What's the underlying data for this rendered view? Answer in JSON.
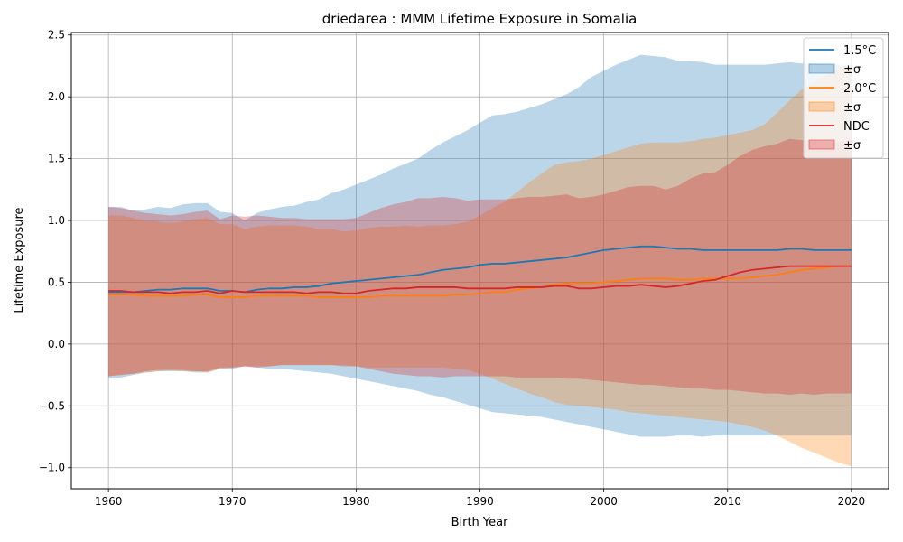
{
  "chart_data": {
    "type": "area",
    "title": "driedarea : MMM Lifetime Exposure in Somalia",
    "xlabel": "Birth Year",
    "ylabel": "Lifetime Exposure",
    "xlim": [
      1957,
      2023
    ],
    "ylim": [
      -1.17,
      2.52
    ],
    "xticks": [
      "1960",
      "1970",
      "1980",
      "1990",
      "2000",
      "2010",
      "2020"
    ],
    "yticks": [
      "−1.0",
      "−0.5",
      "0.0",
      "0.5",
      "1.0",
      "1.5",
      "2.0",
      "2.5"
    ],
    "grid": true,
    "legend_position": "top-right",
    "legend": [
      "1.5°C",
      "±σ",
      "2.0°C",
      "±σ",
      "NDC",
      "±σ"
    ],
    "x": [
      1960,
      1961,
      1962,
      1963,
      1964,
      1965,
      1966,
      1967,
      1968,
      1969,
      1970,
      1971,
      1972,
      1973,
      1974,
      1975,
      1976,
      1977,
      1978,
      1979,
      1980,
      1981,
      1982,
      1983,
      1984,
      1985,
      1986,
      1987,
      1988,
      1989,
      1990,
      1991,
      1992,
      1993,
      1994,
      1995,
      1996,
      1997,
      1998,
      1999,
      2000,
      2001,
      2002,
      2003,
      2004,
      2005,
      2006,
      2007,
      2008,
      2009,
      2010,
      2011,
      2012,
      2013,
      2014,
      2015,
      2016,
      2017,
      2018,
      2019,
      2020
    ],
    "series": [
      {
        "name": "1.5°C",
        "band_name": "±σ",
        "color": "#1f77b4",
        "values": [
          0.42,
          0.42,
          0.42,
          0.43,
          0.44,
          0.44,
          0.45,
          0.45,
          0.45,
          0.43,
          0.43,
          0.42,
          0.44,
          0.45,
          0.45,
          0.46,
          0.46,
          0.47,
          0.49,
          0.5,
          0.51,
          0.52,
          0.53,
          0.54,
          0.55,
          0.56,
          0.58,
          0.6,
          0.61,
          0.62,
          0.64,
          0.65,
          0.65,
          0.66,
          0.67,
          0.68,
          0.69,
          0.7,
          0.72,
          0.74,
          0.76,
          0.77,
          0.78,
          0.79,
          0.79,
          0.78,
          0.77,
          0.77,
          0.76,
          0.76,
          0.76,
          0.76,
          0.76,
          0.76,
          0.76,
          0.77,
          0.77,
          0.76,
          0.76,
          0.76,
          0.76
        ],
        "upper": [
          1.11,
          1.11,
          1.08,
          1.09,
          1.11,
          1.1,
          1.13,
          1.14,
          1.14,
          1.07,
          1.06,
          1.0,
          1.06,
          1.09,
          1.11,
          1.12,
          1.15,
          1.17,
          1.22,
          1.25,
          1.29,
          1.33,
          1.37,
          1.42,
          1.46,
          1.5,
          1.57,
          1.63,
          1.68,
          1.73,
          1.79,
          1.85,
          1.86,
          1.88,
          1.91,
          1.94,
          1.98,
          2.02,
          2.08,
          2.16,
          2.21,
          2.26,
          2.3,
          2.34,
          2.33,
          2.32,
          2.29,
          2.29,
          2.28,
          2.26,
          2.26,
          2.26,
          2.26,
          2.26,
          2.27,
          2.28,
          2.27,
          2.27,
          2.26,
          2.26,
          2.26
        ],
        "lower": [
          -0.28,
          -0.27,
          -0.25,
          -0.23,
          -0.22,
          -0.22,
          -0.22,
          -0.23,
          -0.23,
          -0.2,
          -0.2,
          -0.18,
          -0.19,
          -0.2,
          -0.2,
          -0.21,
          -0.22,
          -0.23,
          -0.24,
          -0.26,
          -0.28,
          -0.3,
          -0.32,
          -0.34,
          -0.36,
          -0.38,
          -0.41,
          -0.43,
          -0.46,
          -0.49,
          -0.52,
          -0.55,
          -0.56,
          -0.57,
          -0.58,
          -0.59,
          -0.61,
          -0.63,
          -0.65,
          -0.67,
          -0.69,
          -0.71,
          -0.73,
          -0.75,
          -0.75,
          -0.75,
          -0.74,
          -0.74,
          -0.75,
          -0.74,
          -0.74,
          -0.74,
          -0.74,
          -0.74,
          -0.74,
          -0.74,
          -0.74,
          -0.74,
          -0.74,
          -0.74,
          -0.74
        ]
      },
      {
        "name": "2.0°C",
        "band_name": "±σ",
        "color": "#ff7f0e",
        "values": [
          0.4,
          0.4,
          0.4,
          0.39,
          0.39,
          0.39,
          0.39,
          0.4,
          0.4,
          0.38,
          0.38,
          0.38,
          0.39,
          0.39,
          0.39,
          0.39,
          0.39,
          0.38,
          0.38,
          0.38,
          0.38,
          0.38,
          0.39,
          0.39,
          0.39,
          0.39,
          0.39,
          0.39,
          0.4,
          0.4,
          0.41,
          0.42,
          0.42,
          0.44,
          0.45,
          0.46,
          0.48,
          0.49,
          0.49,
          0.49,
          0.5,
          0.51,
          0.52,
          0.53,
          0.53,
          0.53,
          0.52,
          0.52,
          0.53,
          0.53,
          0.53,
          0.53,
          0.54,
          0.55,
          0.56,
          0.58,
          0.6,
          0.61,
          0.62,
          0.63,
          0.63
        ],
        "upper": [
          1.04,
          1.04,
          1.02,
          1.0,
          0.99,
          0.98,
          0.99,
          1.01,
          1.02,
          0.97,
          0.97,
          0.93,
          0.95,
          0.96,
          0.96,
          0.96,
          0.95,
          0.93,
          0.93,
          0.91,
          0.92,
          0.94,
          0.95,
          0.95,
          0.96,
          0.95,
          0.96,
          0.96,
          0.97,
          0.99,
          1.04,
          1.1,
          1.15,
          1.23,
          1.31,
          1.38,
          1.45,
          1.47,
          1.48,
          1.5,
          1.53,
          1.56,
          1.59,
          1.62,
          1.63,
          1.63,
          1.63,
          1.64,
          1.66,
          1.67,
          1.69,
          1.71,
          1.73,
          1.78,
          1.87,
          1.97,
          2.06,
          2.12,
          2.18,
          2.23,
          2.26
        ],
        "lower": [
          -0.26,
          -0.25,
          -0.24,
          -0.23,
          -0.22,
          -0.21,
          -0.22,
          -0.22,
          -0.23,
          -0.2,
          -0.19,
          -0.18,
          -0.18,
          -0.18,
          -0.17,
          -0.17,
          -0.17,
          -0.17,
          -0.17,
          -0.17,
          -0.18,
          -0.19,
          -0.19,
          -0.19,
          -0.19,
          -0.19,
          -0.19,
          -0.19,
          -0.2,
          -0.21,
          -0.24,
          -0.28,
          -0.32,
          -0.36,
          -0.4,
          -0.43,
          -0.47,
          -0.49,
          -0.5,
          -0.51,
          -0.52,
          -0.53,
          -0.55,
          -0.56,
          -0.57,
          -0.58,
          -0.59,
          -0.6,
          -0.61,
          -0.62,
          -0.63,
          -0.65,
          -0.67,
          -0.7,
          -0.74,
          -0.79,
          -0.84,
          -0.88,
          -0.92,
          -0.96,
          -0.99
        ]
      },
      {
        "name": "NDC",
        "band_name": "±σ",
        "color": "#d62728",
        "values": [
          0.43,
          0.43,
          0.42,
          0.42,
          0.42,
          0.41,
          0.42,
          0.42,
          0.43,
          0.41,
          0.43,
          0.42,
          0.42,
          0.42,
          0.42,
          0.42,
          0.41,
          0.42,
          0.42,
          0.41,
          0.41,
          0.43,
          0.44,
          0.45,
          0.45,
          0.46,
          0.46,
          0.46,
          0.46,
          0.45,
          0.45,
          0.45,
          0.45,
          0.46,
          0.46,
          0.46,
          0.47,
          0.47,
          0.45,
          0.45,
          0.46,
          0.47,
          0.47,
          0.48,
          0.47,
          0.46,
          0.47,
          0.49,
          0.51,
          0.52,
          0.55,
          0.58,
          0.6,
          0.61,
          0.62,
          0.63,
          0.63,
          0.63,
          0.63,
          0.63,
          0.63
        ],
        "upper": [
          1.11,
          1.1,
          1.08,
          1.06,
          1.05,
          1.04,
          1.05,
          1.07,
          1.08,
          1.01,
          1.04,
          1.03,
          1.04,
          1.03,
          1.02,
          1.02,
          1.01,
          1.01,
          1.01,
          1.01,
          1.02,
          1.06,
          1.1,
          1.13,
          1.15,
          1.18,
          1.18,
          1.19,
          1.18,
          1.16,
          1.17,
          1.17,
          1.17,
          1.18,
          1.19,
          1.19,
          1.2,
          1.21,
          1.18,
          1.19,
          1.21,
          1.24,
          1.27,
          1.28,
          1.28,
          1.25,
          1.28,
          1.34,
          1.38,
          1.39,
          1.45,
          1.52,
          1.57,
          1.6,
          1.62,
          1.66,
          1.65,
          1.64,
          1.63,
          1.63,
          1.66
        ],
        "lower": [
          -0.26,
          -0.25,
          -0.24,
          -0.22,
          -0.21,
          -0.21,
          -0.21,
          -0.22,
          -0.22,
          -0.19,
          -0.19,
          -0.18,
          -0.19,
          -0.18,
          -0.17,
          -0.17,
          -0.17,
          -0.17,
          -0.17,
          -0.18,
          -0.18,
          -0.2,
          -0.22,
          -0.24,
          -0.25,
          -0.26,
          -0.26,
          -0.27,
          -0.26,
          -0.26,
          -0.26,
          -0.26,
          -0.26,
          -0.27,
          -0.27,
          -0.27,
          -0.27,
          -0.28,
          -0.28,
          -0.29,
          -0.3,
          -0.31,
          -0.32,
          -0.33,
          -0.33,
          -0.34,
          -0.35,
          -0.36,
          -0.36,
          -0.37,
          -0.37,
          -0.38,
          -0.39,
          -0.4,
          -0.4,
          -0.41,
          -0.4,
          -0.41,
          -0.4,
          -0.4,
          -0.4
        ]
      }
    ]
  }
}
